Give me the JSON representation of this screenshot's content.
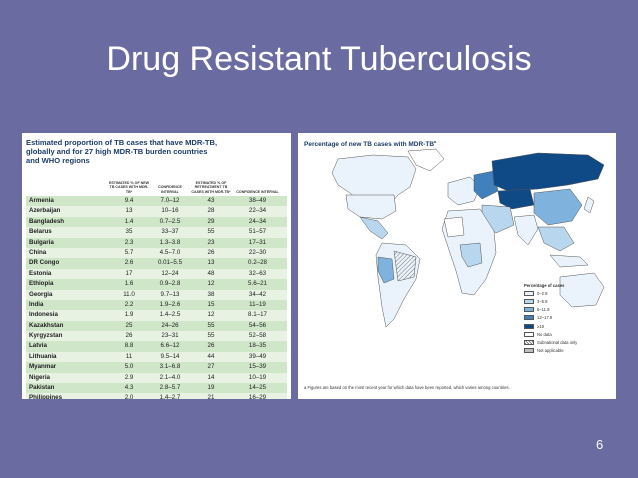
{
  "slide": {
    "title": "Drug Resistant Tuberculosis",
    "page_number": "6"
  },
  "table": {
    "heading_lines": [
      "Estimated proportion of TB cases that have MDR-TB,",
      "globally and for 27 high MDR-TB burden countries",
      "and WHO regions"
    ],
    "columns": [
      "ESTIMATED % OF NEW TB CASES WITH MDR-TB*",
      "CONFIDENCE INTERVAL",
      "ESTIMATED % OF RETREATMENT TB CASES WITH MDR-TB*",
      "CONFIDENCE INTERVAL"
    ],
    "rows": [
      {
        "country": "Armenia",
        "new": "9.4",
        "new_ci": "7.0–12",
        "ret": "43",
        "ret_ci": "38–49"
      },
      {
        "country": "Azerbaijan",
        "new": "13",
        "new_ci": "10–16",
        "ret": "28",
        "ret_ci": "22–34"
      },
      {
        "country": "Bangladesh",
        "new": "1.4",
        "new_ci": "0.7–2.5",
        "ret": "29",
        "ret_ci": "24–34"
      },
      {
        "country": "Belarus",
        "new": "35",
        "new_ci": "33–37",
        "ret": "55",
        "ret_ci": "51–57"
      },
      {
        "country": "Bulgaria",
        "new": "2.3",
        "new_ci": "1.3–3.8",
        "ret": "23",
        "ret_ci": "17–31"
      },
      {
        "country": "China",
        "new": "5.7",
        "new_ci": "4.5–7.0",
        "ret": "26",
        "ret_ci": "22–30"
      },
      {
        "country": "DR Congo",
        "new": "2.6",
        "new_ci": "0.01–5.5",
        "ret": "13",
        "ret_ci": "0.2–28"
      },
      {
        "country": "Estonia",
        "new": "17",
        "new_ci": "12–24",
        "ret": "48",
        "ret_ci": "32–63"
      },
      {
        "country": "Ethiopia",
        "new": "1.6",
        "new_ci": "0.9–2.8",
        "ret": "12",
        "ret_ci": "5.6–21"
      },
      {
        "country": "Georgia",
        "new": "11.0",
        "new_ci": "9.7–13",
        "ret": "38",
        "ret_ci": "34–42"
      },
      {
        "country": "India",
        "new": "2.2",
        "new_ci": "1.9–2.6",
        "ret": "15",
        "ret_ci": "11–19"
      },
      {
        "country": "Indonesia",
        "new": "1.9",
        "new_ci": "1.4–2.5",
        "ret": "12",
        "ret_ci": "8.1–17"
      },
      {
        "country": "Kazakhstan",
        "new": "25",
        "new_ci": "24–26",
        "ret": "55",
        "ret_ci": "54–56"
      },
      {
        "country": "Kyrgyzstan",
        "new": "26",
        "new_ci": "23–31",
        "ret": "55",
        "ret_ci": "52–58"
      },
      {
        "country": "Latvia",
        "new": "8.8",
        "new_ci": "6.6–12",
        "ret": "26",
        "ret_ci": "18–35"
      },
      {
        "country": "Lithuania",
        "new": "11",
        "new_ci": "9.5–14",
        "ret": "44",
        "ret_ci": "39–49"
      },
      {
        "country": "Myanmar",
        "new": "5.0",
        "new_ci": "3.1–6.8",
        "ret": "27",
        "ret_ci": "15–39"
      },
      {
        "country": "Nigeria",
        "new": "2.9",
        "new_ci": "2.1–4.0",
        "ret": "14",
        "ret_ci": "10–19"
      },
      {
        "country": "Pakistan",
        "new": "4.3",
        "new_ci": "2.8–5.7",
        "ret": "19",
        "ret_ci": "14–25"
      },
      {
        "country": "Philippines",
        "new": "2.0",
        "new_ci": "1.4–2.7",
        "ret": "21",
        "ret_ci": "16–29"
      }
    ]
  },
  "map": {
    "title": "Percentage of new TB cases with MDR-TB",
    "title_superscript": "a",
    "legend_title": "Percentage of cases",
    "legend": [
      {
        "label": "0–2.9",
        "color": "#eaf3fb"
      },
      {
        "label": "3–5.9",
        "color": "#b8d7ee"
      },
      {
        "label": "6–11.9",
        "color": "#7fb2dc"
      },
      {
        "label": "12–17.9",
        "color": "#3f80bd"
      },
      {
        "label": "≥18",
        "color": "#0f4a86"
      },
      {
        "label": "No data",
        "color": "#ffffff"
      },
      {
        "label": "Subnational data only",
        "color": "hatch"
      },
      {
        "label": "Not applicable",
        "color": "#bdbdbd"
      }
    ],
    "footnote": "a Figures are based on the most recent year for which data have been reported, which varies among countries."
  }
}
